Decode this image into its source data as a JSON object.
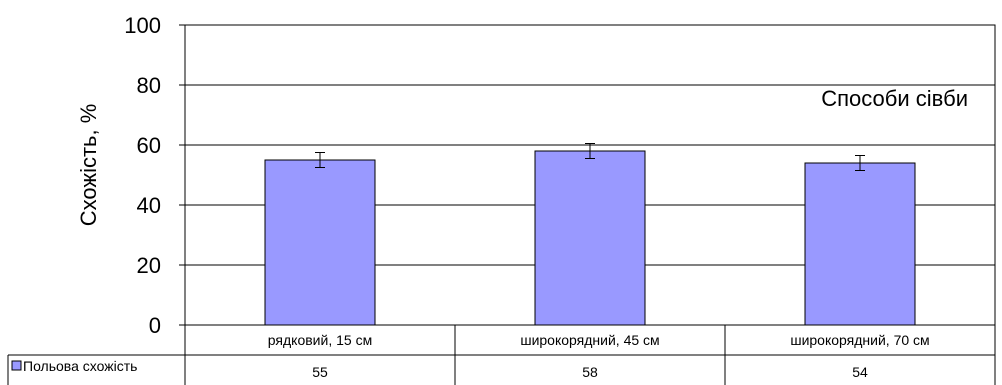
{
  "chart_data": {
    "type": "bar",
    "ylabel": "Схожість, %",
    "annotation": "Способи сівби",
    "ylim": [
      0,
      100
    ],
    "yticks": [
      0,
      20,
      40,
      60,
      80,
      100
    ],
    "grid": true,
    "categories": [
      "рядковий, 15 см",
      "широкорядний, 45 см",
      "широкорядний, 70 см"
    ],
    "series": [
      {
        "name": "Польова схожість",
        "values": [
          55,
          58,
          54
        ],
        "error": [
          2.5,
          2.5,
          2.5
        ],
        "color": "#9999ff"
      }
    ],
    "data_table": true
  }
}
